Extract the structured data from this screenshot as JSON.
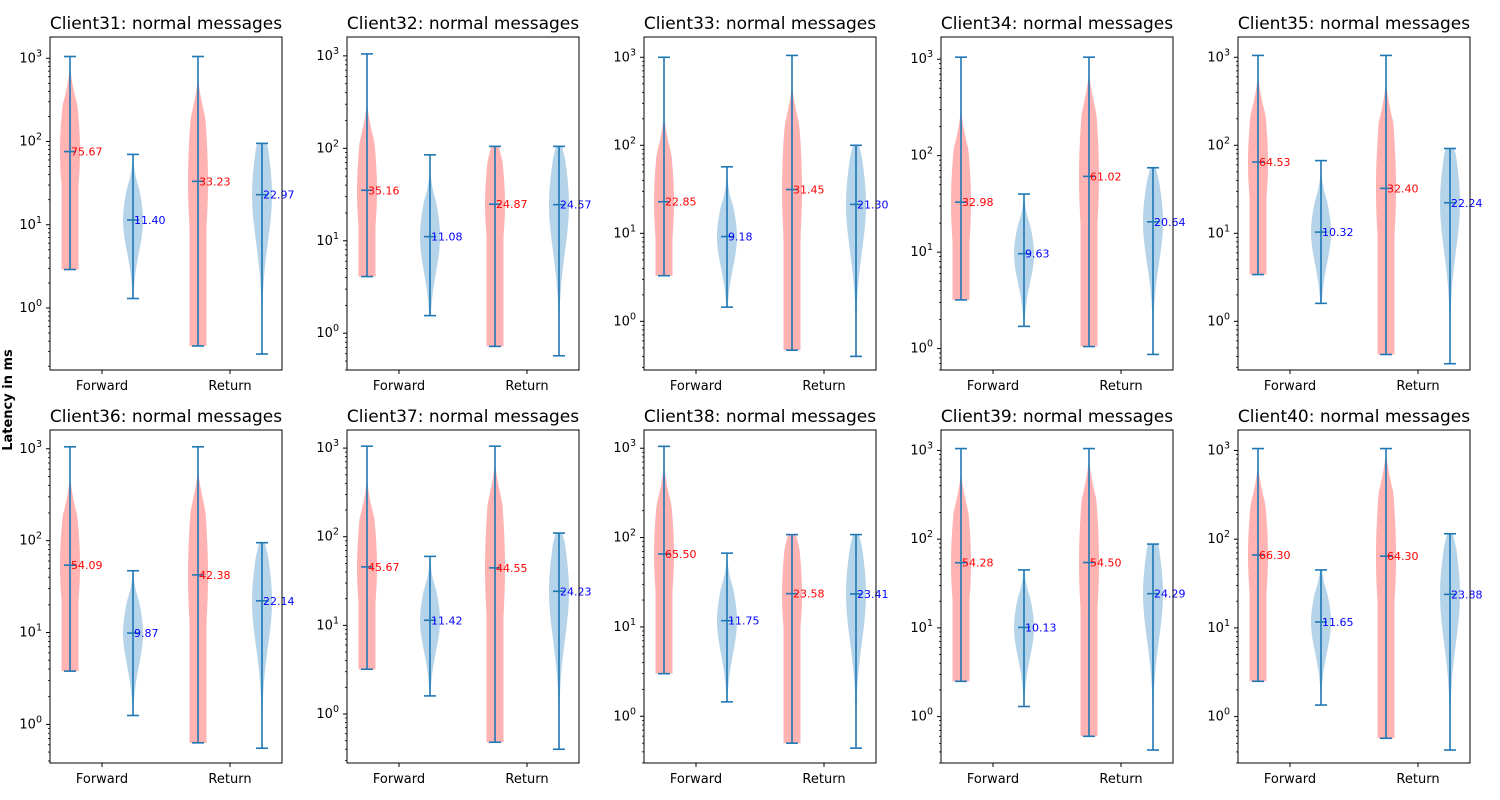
{
  "figure": {
    "ylabel": "Latency in ms",
    "colors": {
      "forward_body": "#ff9999",
      "return_body": "#9ec5e2",
      "stats_line": "#1f77b4",
      "forward_label": "#ff0000",
      "return_label": "#0000ff"
    }
  },
  "chart_data": [
    {
      "type": "violin",
      "title": "Client31: normal messages",
      "categories": [
        "Forward",
        "Return"
      ],
      "yscale": "log",
      "ylim": [
        0.18,
        1800
      ],
      "yticks": [
        {
          "base": "10",
          "exp": "0"
        },
        {
          "base": "10",
          "exp": "1"
        },
        {
          "base": "10",
          "exp": "2"
        },
        {
          "base": "10",
          "exp": "3"
        }
      ],
      "violins": [
        {
          "group": "Forward",
          "direction": "forward",
          "min": 2.9,
          "median": 75.67,
          "max": 1050,
          "label": "75.67"
        },
        {
          "group": "Forward",
          "direction": "return",
          "min": 1.3,
          "median": 11.4,
          "max": 70,
          "label": "11.40"
        },
        {
          "group": "Return",
          "direction": "forward",
          "min": 0.35,
          "median": 33.23,
          "max": 1050,
          "label": "33.23"
        },
        {
          "group": "Return",
          "direction": "return",
          "min": 0.28,
          "median": 22.97,
          "max": 95,
          "label": "22.97"
        }
      ]
    },
    {
      "type": "violin",
      "title": "Client32: normal messages",
      "categories": [
        "Forward",
        "Return"
      ],
      "yscale": "log",
      "ylim": [
        0.4,
        1600
      ],
      "yticks": [
        {
          "base": "10",
          "exp": "0"
        },
        {
          "base": "10",
          "exp": "1"
        },
        {
          "base": "10",
          "exp": "2"
        },
        {
          "base": "10",
          "exp": "3"
        }
      ],
      "violins": [
        {
          "group": "Forward",
          "direction": "forward",
          "min": 4.1,
          "median": 35.16,
          "max": 1050,
          "label": "35.16"
        },
        {
          "group": "Forward",
          "direction": "return",
          "min": 1.55,
          "median": 11.08,
          "max": 85,
          "label": "11.08"
        },
        {
          "group": "Return",
          "direction": "forward",
          "min": 0.72,
          "median": 24.87,
          "max": 105,
          "label": "24.87"
        },
        {
          "group": "Return",
          "direction": "return",
          "min": 0.57,
          "median": 24.57,
          "max": 105,
          "label": "24.57"
        }
      ]
    },
    {
      "type": "violin",
      "title": "Client33: normal messages",
      "categories": [
        "Forward",
        "Return"
      ],
      "yscale": "log",
      "ylim": [
        0.28,
        1700
      ],
      "yticks": [
        {
          "base": "10",
          "exp": "0"
        },
        {
          "base": "10",
          "exp": "1"
        },
        {
          "base": "10",
          "exp": "2"
        },
        {
          "base": "10",
          "exp": "3"
        }
      ],
      "violins": [
        {
          "group": "Forward",
          "direction": "forward",
          "min": 3.3,
          "median": 22.85,
          "max": 1000,
          "label": "22.85"
        },
        {
          "group": "Forward",
          "direction": "return",
          "min": 1.45,
          "median": 9.18,
          "max": 57,
          "label": "9.18"
        },
        {
          "group": "Return",
          "direction": "forward",
          "min": 0.47,
          "median": 31.45,
          "max": 1050,
          "label": "31.45"
        },
        {
          "group": "Return",
          "direction": "return",
          "min": 0.4,
          "median": 21.3,
          "max": 100,
          "label": "21.30"
        }
      ]
    },
    {
      "type": "violin",
      "title": "Client34: normal messages",
      "categories": [
        "Forward",
        "Return"
      ],
      "yscale": "log",
      "ylim": [
        0.6,
        1700
      ],
      "yticks": [
        {
          "base": "10",
          "exp": "0"
        },
        {
          "base": "10",
          "exp": "1"
        },
        {
          "base": "10",
          "exp": "2"
        },
        {
          "base": "10",
          "exp": "3"
        }
      ],
      "violins": [
        {
          "group": "Forward",
          "direction": "forward",
          "min": 3.2,
          "median": 32.98,
          "max": 1050,
          "label": "32.98"
        },
        {
          "group": "Forward",
          "direction": "return",
          "min": 1.7,
          "median": 9.63,
          "max": 40,
          "label": "9.63"
        },
        {
          "group": "Return",
          "direction": "forward",
          "min": 1.05,
          "median": 61.02,
          "max": 1050,
          "label": "61.02"
        },
        {
          "group": "Return",
          "direction": "return",
          "min": 0.87,
          "median": 20.64,
          "max": 75,
          "label": "20.64"
        }
      ]
    },
    {
      "type": "violin",
      "title": "Client35: normal messages",
      "categories": [
        "Forward",
        "Return"
      ],
      "yscale": "log",
      "ylim": [
        0.28,
        1700
      ],
      "yticks": [
        {
          "base": "10",
          "exp": "0"
        },
        {
          "base": "10",
          "exp": "1"
        },
        {
          "base": "10",
          "exp": "2"
        },
        {
          "base": "10",
          "exp": "3"
        }
      ],
      "violins": [
        {
          "group": "Forward",
          "direction": "forward",
          "min": 3.4,
          "median": 64.53,
          "max": 1050,
          "label": "64.53"
        },
        {
          "group": "Forward",
          "direction": "return",
          "min": 1.6,
          "median": 10.32,
          "max": 67,
          "label": "10.32"
        },
        {
          "group": "Return",
          "direction": "forward",
          "min": 0.42,
          "median": 32.4,
          "max": 1050,
          "label": "32.40"
        },
        {
          "group": "Return",
          "direction": "return",
          "min": 0.33,
          "median": 22.24,
          "max": 92,
          "label": "22.24"
        }
      ]
    },
    {
      "type": "violin",
      "title": "Client36: normal messages",
      "categories": [
        "Forward",
        "Return"
      ],
      "yscale": "log",
      "ylim": [
        0.38,
        1600
      ],
      "yticks": [
        {
          "base": "10",
          "exp": "0"
        },
        {
          "base": "10",
          "exp": "1"
        },
        {
          "base": "10",
          "exp": "2"
        },
        {
          "base": "10",
          "exp": "3"
        }
      ],
      "violins": [
        {
          "group": "Forward",
          "direction": "forward",
          "min": 3.8,
          "median": 54.09,
          "max": 1050,
          "label": "54.09"
        },
        {
          "group": "Forward",
          "direction": "return",
          "min": 1.25,
          "median": 9.87,
          "max": 47,
          "label": "9.87"
        },
        {
          "group": "Return",
          "direction": "forward",
          "min": 0.63,
          "median": 42.38,
          "max": 1050,
          "label": "42.38"
        },
        {
          "group": "Return",
          "direction": "return",
          "min": 0.55,
          "median": 22.14,
          "max": 95,
          "label": "22.14"
        }
      ]
    },
    {
      "type": "violin",
      "title": "Client37: normal messages",
      "categories": [
        "Forward",
        "Return"
      ],
      "yscale": "log",
      "ylim": [
        0.28,
        1600
      ],
      "yticks": [
        {
          "base": "10",
          "exp": "0"
        },
        {
          "base": "10",
          "exp": "1"
        },
        {
          "base": "10",
          "exp": "2"
        },
        {
          "base": "10",
          "exp": "3"
        }
      ],
      "violins": [
        {
          "group": "Forward",
          "direction": "forward",
          "min": 3.2,
          "median": 45.67,
          "max": 1050,
          "label": "45.67"
        },
        {
          "group": "Forward",
          "direction": "return",
          "min": 1.6,
          "median": 11.42,
          "max": 60,
          "label": "11.42"
        },
        {
          "group": "Return",
          "direction": "forward",
          "min": 0.48,
          "median": 44.55,
          "max": 1050,
          "label": "44.55"
        },
        {
          "group": "Return",
          "direction": "return",
          "min": 0.4,
          "median": 24.23,
          "max": 110,
          "label": "24.23"
        }
      ]
    },
    {
      "type": "violin",
      "title": "Client38: normal messages",
      "categories": [
        "Forward",
        "Return"
      ],
      "yscale": "log",
      "ylim": [
        0.3,
        1600
      ],
      "yticks": [
        {
          "base": "10",
          "exp": "0"
        },
        {
          "base": "10",
          "exp": "1"
        },
        {
          "base": "10",
          "exp": "2"
        },
        {
          "base": "10",
          "exp": "3"
        }
      ],
      "violins": [
        {
          "group": "Forward",
          "direction": "forward",
          "min": 3.0,
          "median": 65.5,
          "max": 1050,
          "label": "65.50"
        },
        {
          "group": "Forward",
          "direction": "return",
          "min": 1.45,
          "median": 11.75,
          "max": 67,
          "label": "11.75"
        },
        {
          "group": "Return",
          "direction": "forward",
          "min": 0.5,
          "median": 23.58,
          "max": 108,
          "label": "23.58"
        },
        {
          "group": "Return",
          "direction": "return",
          "min": 0.44,
          "median": 23.41,
          "max": 108,
          "label": "23.41"
        }
      ]
    },
    {
      "type": "violin",
      "title": "Client39: normal messages",
      "categories": [
        "Forward",
        "Return"
      ],
      "yscale": "log",
      "ylim": [
        0.3,
        1700
      ],
      "yticks": [
        {
          "base": "10",
          "exp": "0"
        },
        {
          "base": "10",
          "exp": "1"
        },
        {
          "base": "10",
          "exp": "2"
        },
        {
          "base": "10",
          "exp": "3"
        }
      ],
      "violins": [
        {
          "group": "Forward",
          "direction": "forward",
          "min": 2.5,
          "median": 54.28,
          "max": 1050,
          "label": "54.28"
        },
        {
          "group": "Forward",
          "direction": "return",
          "min": 1.3,
          "median": 10.13,
          "max": 45,
          "label": "10.13"
        },
        {
          "group": "Return",
          "direction": "forward",
          "min": 0.6,
          "median": 54.5,
          "max": 1050,
          "label": "54.50"
        },
        {
          "group": "Return",
          "direction": "return",
          "min": 0.42,
          "median": 24.29,
          "max": 88,
          "label": "24.29"
        }
      ]
    },
    {
      "type": "violin",
      "title": "Client40: normal messages",
      "categories": [
        "Forward",
        "Return"
      ],
      "yscale": "log",
      "ylim": [
        0.3,
        1700
      ],
      "yticks": [
        {
          "base": "10",
          "exp": "0"
        },
        {
          "base": "10",
          "exp": "1"
        },
        {
          "base": "10",
          "exp": "2"
        },
        {
          "base": "10",
          "exp": "3"
        }
      ],
      "violins": [
        {
          "group": "Forward",
          "direction": "forward",
          "min": 2.5,
          "median": 66.3,
          "max": 1050,
          "label": "66.30"
        },
        {
          "group": "Forward",
          "direction": "return",
          "min": 1.35,
          "median": 11.65,
          "max": 45,
          "label": "11.65"
        },
        {
          "group": "Return",
          "direction": "forward",
          "min": 0.57,
          "median": 64.3,
          "max": 1050,
          "label": "64.30"
        },
        {
          "group": "Return",
          "direction": "return",
          "min": 0.42,
          "median": 23.88,
          "max": 115,
          "label": "23.88"
        }
      ]
    }
  ]
}
